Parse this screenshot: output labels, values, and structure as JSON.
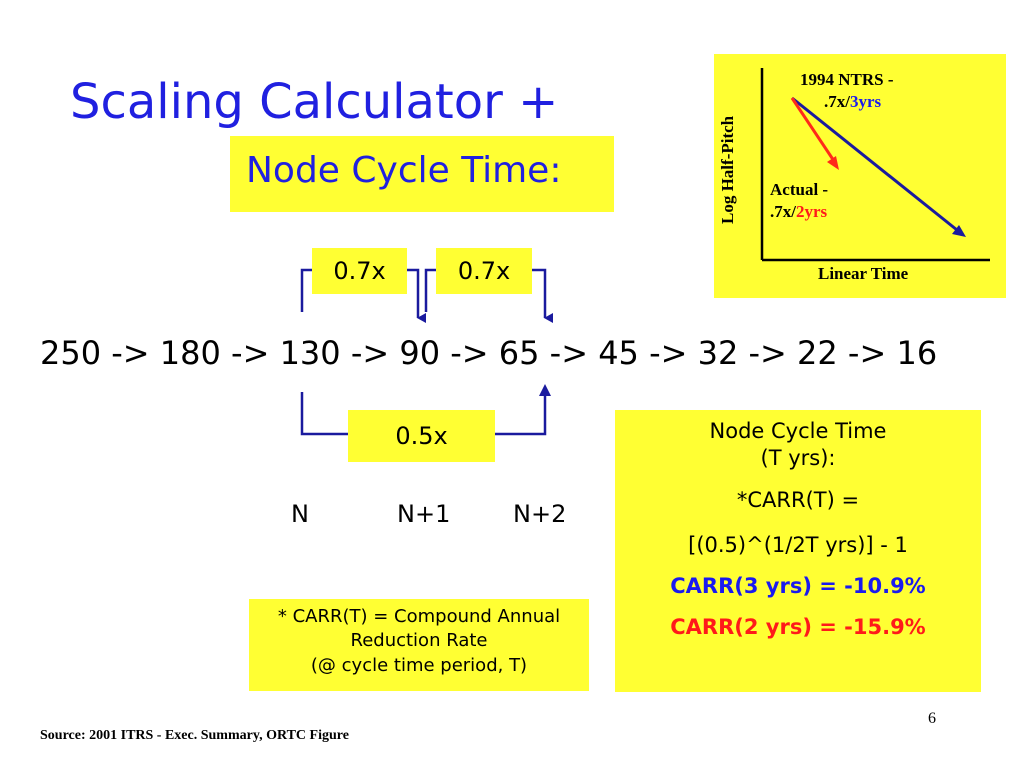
{
  "slide": {
    "title": "Scaling Calculator +",
    "subtitle": "Node Cycle Time:",
    "factor_top_1": "0.7x",
    "factor_top_2": "0.7x",
    "factor_bottom": "0.5x",
    "sequence": "250 -> 180 -> 130 -> 90 -> 65 -> 45 -> 32 -> 22 -> 16",
    "node_labels": [
      "N",
      "N+1",
      "N+2"
    ],
    "page_number": "6",
    "source": "Source:  2001 ITRS - Exec. Summary, ORTC Figure"
  },
  "node_cycle_box": {
    "line1": "Node Cycle Time",
    "line2": "(T yrs):",
    "line3": "*CARR(T) =",
    "line4": "[(0.5)^(1/2T yrs)] - 1",
    "line5": "CARR(3 yrs) = -10.9%",
    "line6": "CARR(2 yrs) = -15.9%"
  },
  "carr_definition": {
    "line1": "* CARR(T) = Compound Annual",
    "line2": "Reduction Rate",
    "line3": "(@ cycle time period, T)"
  },
  "inset_chart": {
    "y_axis_label": "Log Half-Pitch",
    "x_axis_label": "Linear Time",
    "ntrs_label_line1": "1994 NTRS -",
    "ntrs_label_prefix": ".7x/",
    "ntrs_label_years": "3yrs",
    "actual_label_line1": "Actual -",
    "actual_label_prefix": ".7x/",
    "actual_label_years": "2yrs",
    "colors": {
      "ntrs_line": "#1a1a9e",
      "actual_line": "#ff2a1a",
      "ntrs_text": "#1a1aef",
      "actual_text": "#ff1a1a"
    }
  },
  "colors": {
    "title": "#2020e0",
    "highlight": "#ffff33",
    "bracket": "#1a1a9e"
  }
}
